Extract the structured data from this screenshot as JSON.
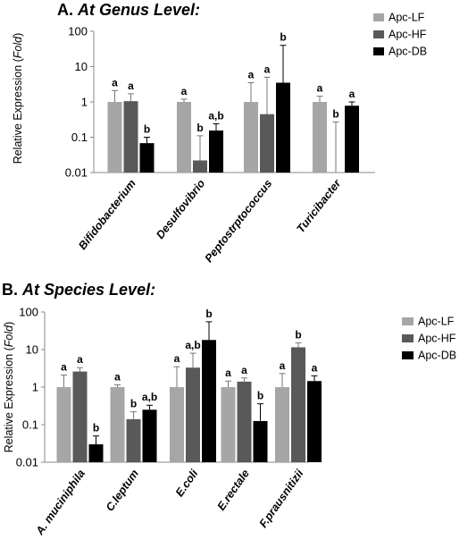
{
  "chart_data": [
    {
      "type": "bar",
      "title_prefix": "A.",
      "title_main": "At Genus Level:",
      "ylabel_main": "Relative Expression (",
      "ylabel_unit": "Fold",
      "ylabel_end": ")",
      "yscale": "log",
      "ylim": [
        0.01,
        100
      ],
      "ytick_labels": [
        "0.01",
        "0.1",
        "1",
        "10",
        "100"
      ],
      "grid": false,
      "legend_position": "top-right",
      "categories": [
        "Bifidobacterium",
        "Desulfovibrio",
        "Peptostrptococcus",
        "Turicibacter"
      ],
      "series": [
        {
          "name": "Apc-LF",
          "color": "#a6a6a6",
          "values": [
            1.0,
            1.0,
            1.0,
            1.0
          ],
          "error_upper": [
            2.1,
            1.2,
            3.5,
            1.45
          ],
          "labels": [
            "a",
            "a",
            "a",
            "a"
          ]
        },
        {
          "name": "Apc-HF",
          "color": "#595959",
          "values": [
            1.05,
            0.022,
            0.45,
            0.01
          ],
          "error_upper": [
            1.7,
            0.11,
            5.0,
            0.27
          ],
          "labels": [
            "a",
            "b",
            "a",
            "b"
          ]
        },
        {
          "name": "Apc-DB",
          "color": "#000000",
          "values": [
            0.068,
            0.155,
            3.5,
            0.78
          ],
          "error_upper": [
            0.1,
            0.24,
            40,
            1.0
          ],
          "labels": [
            "b",
            "a,b",
            "b",
            "a"
          ]
        }
      ]
    },
    {
      "type": "bar",
      "title_prefix": "B.",
      "title_main": "At Species Level:",
      "ylabel_main": "Relative Expression (",
      "ylabel_unit": "Fold",
      "ylabel_end": ")",
      "yscale": "log",
      "ylim": [
        0.01,
        100
      ],
      "ytick_labels": [
        "0.01",
        "0.1",
        "1",
        "10",
        "100"
      ],
      "grid": false,
      "legend_position": "top-right",
      "categories": [
        "A. muciniphila",
        "C.leptum",
        "E.coli",
        "E.rectale",
        "F.prausnitizii"
      ],
      "series": [
        {
          "name": "Apc-LF",
          "color": "#a6a6a6",
          "values": [
            1.0,
            1.0,
            1.0,
            1.0,
            1.0
          ],
          "error_upper": [
            2.1,
            1.15,
            3.5,
            1.45,
            2.3
          ],
          "labels": [
            "a",
            "a",
            "a",
            "a",
            "a"
          ]
        },
        {
          "name": "Apc-HF",
          "color": "#595959",
          "values": [
            2.6,
            0.14,
            3.3,
            1.4,
            11.5
          ],
          "error_upper": [
            3.3,
            0.22,
            8.0,
            1.75,
            15.0
          ],
          "labels": [
            "a",
            "b",
            "a,b",
            "a",
            "b"
          ]
        },
        {
          "name": "Apc-DB",
          "color": "#000000",
          "values": [
            0.03,
            0.25,
            18,
            0.125,
            1.45
          ],
          "error_upper": [
            0.05,
            0.33,
            55,
            0.36,
            2.0
          ],
          "labels": [
            "b",
            "a,b",
            "b",
            "b",
            "a"
          ]
        }
      ]
    }
  ]
}
